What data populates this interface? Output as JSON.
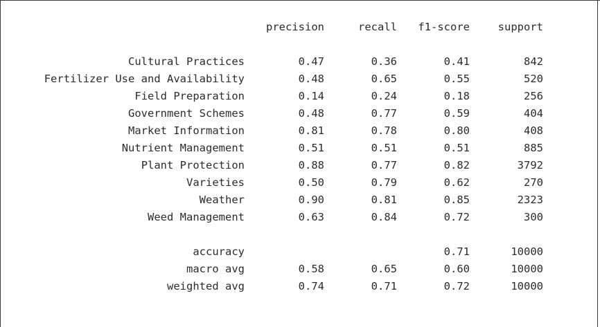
{
  "report": {
    "headers": {
      "precision": "precision",
      "recall": "recall",
      "f1_score": "f1-score",
      "support": "support"
    },
    "classes": [
      {
        "label": "Cultural Practices",
        "precision": "0.47",
        "recall": "0.36",
        "f1_score": "0.41",
        "support": "842"
      },
      {
        "label": "Fertilizer Use and Availability",
        "precision": "0.48",
        "recall": "0.65",
        "f1_score": "0.55",
        "support": "520"
      },
      {
        "label": "Field Preparation",
        "precision": "0.14",
        "recall": "0.24",
        "f1_score": "0.18",
        "support": "256"
      },
      {
        "label": "Government Schemes",
        "precision": "0.48",
        "recall": "0.77",
        "f1_score": "0.59",
        "support": "404"
      },
      {
        "label": "Market Information",
        "precision": "0.81",
        "recall": "0.78",
        "f1_score": "0.80",
        "support": "408"
      },
      {
        "label": "Nutrient Management",
        "precision": "0.51",
        "recall": "0.51",
        "f1_score": "0.51",
        "support": "885"
      },
      {
        "label": "Plant Protection",
        "precision": "0.88",
        "recall": "0.77",
        "f1_score": "0.82",
        "support": "3792"
      },
      {
        "label": "Varieties",
        "precision": "0.50",
        "recall": "0.79",
        "f1_score": "0.62",
        "support": "270"
      },
      {
        "label": "Weather",
        "precision": "0.90",
        "recall": "0.81",
        "f1_score": "0.85",
        "support": "2323"
      },
      {
        "label": "Weed Management",
        "precision": "0.63",
        "recall": "0.84",
        "f1_score": "0.72",
        "support": "300"
      }
    ],
    "summary": [
      {
        "label": "accuracy",
        "precision": "",
        "recall": "",
        "f1_score": "0.71",
        "support": "10000"
      },
      {
        "label": "macro avg",
        "precision": "0.58",
        "recall": "0.65",
        "f1_score": "0.60",
        "support": "10000"
      },
      {
        "label": "weighted avg",
        "precision": "0.74",
        "recall": "0.71",
        "f1_score": "0.72",
        "support": "10000"
      }
    ]
  }
}
